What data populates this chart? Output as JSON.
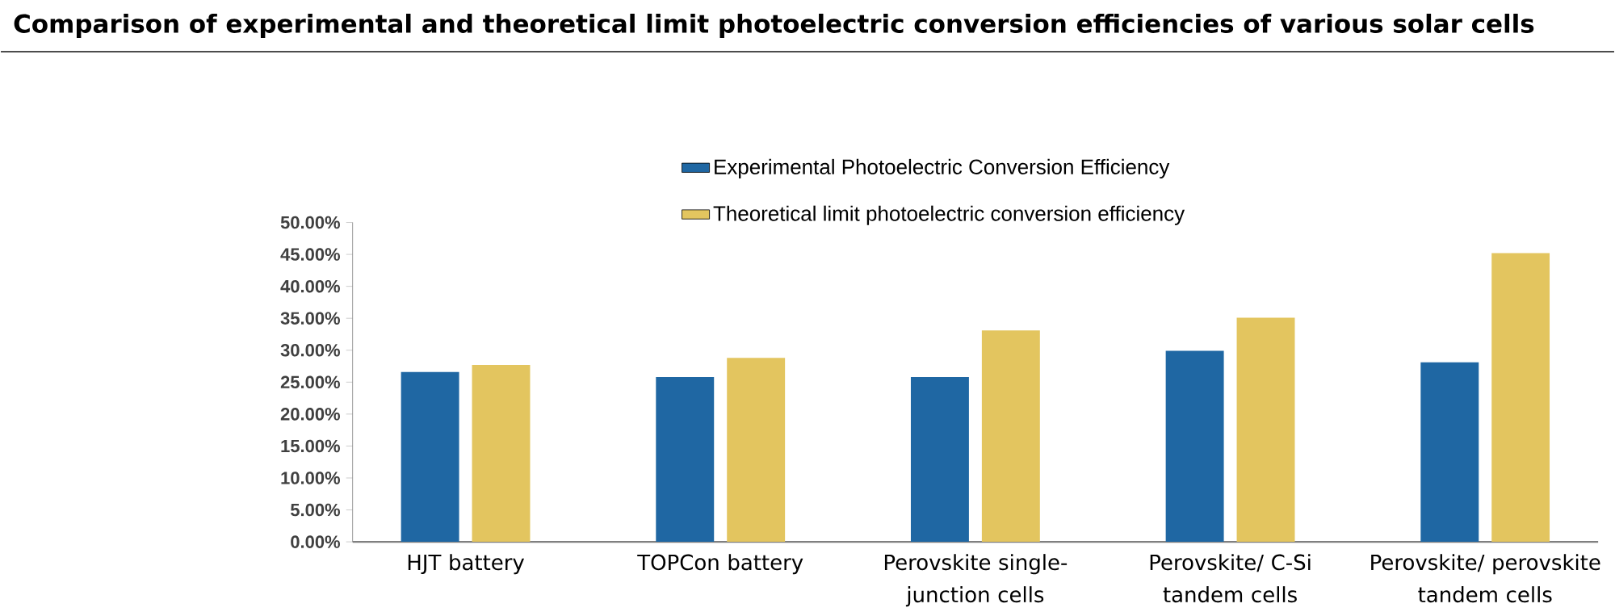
{
  "chart_data": {
    "type": "bar",
    "title": "Comparison of experimental and theoretical limit photoelectric conversion efficiencies of various solar cells",
    "categories": [
      "HJT battery",
      "TOPCon battery",
      "Perovskite single-junction cells",
      "Perovskite/ C-Si tandem cells",
      "Perovskite/ perovskite tandem cells"
    ],
    "series": [
      {
        "name": "Experimental Photoelectric Conversion Efficiency",
        "color": "#1f67a3",
        "values": [
          26.6,
          25.8,
          25.8,
          29.9,
          28.1
        ]
      },
      {
        "name": "Theoretical limit photoelectric conversion efficiency",
        "color": "#e3c55f",
        "values": [
          27.7,
          28.8,
          33.1,
          35.1,
          45.2
        ]
      }
    ],
    "ylim": [
      0,
      50
    ],
    "yticks": [
      {
        "value": 0,
        "label": "0.00%"
      },
      {
        "value": 5,
        "label": "5.00%"
      },
      {
        "value": 10,
        "label": "10.00%"
      },
      {
        "value": 15,
        "label": "15.00%"
      },
      {
        "value": 20,
        "label": "20.00%"
      },
      {
        "value": 25,
        "label": "25.00%"
      },
      {
        "value": 30,
        "label": "30.00%"
      },
      {
        "value": 35,
        "label": "35.00%"
      },
      {
        "value": 40,
        "label": "40.00%"
      },
      {
        "value": 45,
        "label": "45.00%"
      },
      {
        "value": 50,
        "label": "50.00%"
      }
    ],
    "grid": false,
    "legend": "top"
  }
}
